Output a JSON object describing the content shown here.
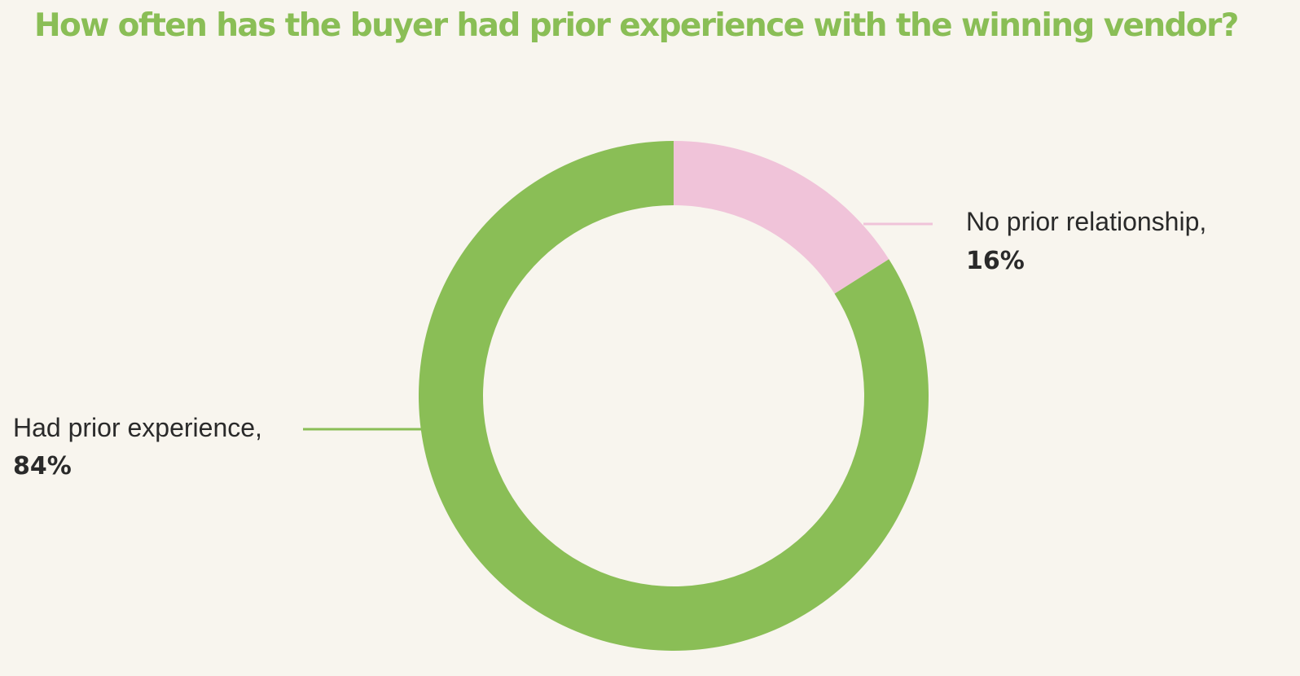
{
  "chart_data": {
    "type": "pie",
    "title": "How often has the buyer had prior experience with  the winning vendor?",
    "title_color": "#8abe56",
    "donut": true,
    "legend": "none",
    "slices": [
      {
        "label": "No prior relationship,",
        "value": 16,
        "value_label": "16%",
        "color": "#f0c3d9"
      },
      {
        "label": "Had prior experience,",
        "value": 84,
        "value_label": "84%",
        "color": "#8abe56"
      }
    ]
  }
}
